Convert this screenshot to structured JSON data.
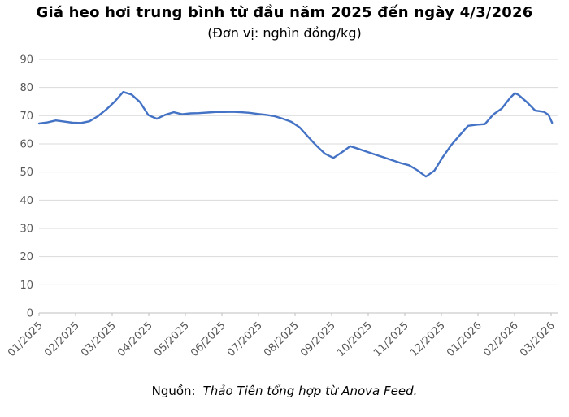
{
  "page": {
    "title": "Giá heo hơi trung bình từ đầu năm 2025 đến ngày 4/3/2026",
    "subtitle": "(Đơn vị: nghìn đồng/kg)",
    "source_label": "Nguồn:",
    "source_text": "Thảo Tiên tổng hợp từ Anova Feed."
  },
  "chart_data": {
    "type": "line",
    "title": "Giá heo hơi trung bình từ đầu năm 2025 đến ngày 4/3/2026",
    "subtitle": "(Đơn vị: nghìn đồng/kg)",
    "ylabel": "nghìn đồng/kg",
    "ylim": [
      0,
      90
    ],
    "y_ticks": [
      0,
      10,
      20,
      30,
      40,
      50,
      60,
      70,
      80,
      90
    ],
    "x_tick_labels": [
      "01/2025",
      "02/2025",
      "03/2025",
      "04/2025",
      "05/2025",
      "06/2025",
      "07/2025",
      "08/2025",
      "09/2025",
      "10/2025",
      "11/2025",
      "12/2025",
      "01/2026",
      "02/2026",
      "03/2026"
    ],
    "grid": "horizontal",
    "legend": "none",
    "colors": {
      "line": "#4472C4",
      "grid": "#D9D9D9",
      "axis": "#BFBFBF",
      "tick_text": "#595959",
      "title_text": "#000000"
    },
    "series": [
      {
        "name": "Giá heo hơi trung bình (nghìn đồng/kg)",
        "points": [
          {
            "date": "2025-01-01",
            "value": 67.2
          },
          {
            "date": "2025-01-08",
            "value": 67.6
          },
          {
            "date": "2025-01-15",
            "value": 68.3
          },
          {
            "date": "2025-01-22",
            "value": 67.9
          },
          {
            "date": "2025-01-29",
            "value": 67.5
          },
          {
            "date": "2025-02-05",
            "value": 67.4
          },
          {
            "date": "2025-02-12",
            "value": 68.0
          },
          {
            "date": "2025-02-19",
            "value": 69.8
          },
          {
            "date": "2025-02-26",
            "value": 72.2
          },
          {
            "date": "2025-03-05",
            "value": 75.0
          },
          {
            "date": "2025-03-12",
            "value": 78.4
          },
          {
            "date": "2025-03-19",
            "value": 77.5
          },
          {
            "date": "2025-03-26",
            "value": 74.8
          },
          {
            "date": "2025-04-02",
            "value": 70.2
          },
          {
            "date": "2025-04-09",
            "value": 68.9
          },
          {
            "date": "2025-04-16",
            "value": 70.3
          },
          {
            "date": "2025-04-23",
            "value": 71.2
          },
          {
            "date": "2025-04-30",
            "value": 70.5
          },
          {
            "date": "2025-05-07",
            "value": 70.8
          },
          {
            "date": "2025-05-14",
            "value": 70.9
          },
          {
            "date": "2025-05-21",
            "value": 71.1
          },
          {
            "date": "2025-05-28",
            "value": 71.3
          },
          {
            "date": "2025-06-04",
            "value": 71.3
          },
          {
            "date": "2025-06-11",
            "value": 71.4
          },
          {
            "date": "2025-06-18",
            "value": 71.2
          },
          {
            "date": "2025-06-25",
            "value": 71.0
          },
          {
            "date": "2025-07-02",
            "value": 70.6
          },
          {
            "date": "2025-07-09",
            "value": 70.3
          },
          {
            "date": "2025-07-16",
            "value": 69.8
          },
          {
            "date": "2025-07-23",
            "value": 68.9
          },
          {
            "date": "2025-07-30",
            "value": 67.8
          },
          {
            "date": "2025-08-06",
            "value": 65.8
          },
          {
            "date": "2025-08-13",
            "value": 62.5
          },
          {
            "date": "2025-08-20",
            "value": 59.3
          },
          {
            "date": "2025-08-27",
            "value": 56.5
          },
          {
            "date": "2025-09-03",
            "value": 55.0
          },
          {
            "date": "2025-09-10",
            "value": 57.0
          },
          {
            "date": "2025-09-17",
            "value": 59.2
          },
          {
            "date": "2025-09-24",
            "value": 58.2
          },
          {
            "date": "2025-10-01",
            "value": 57.2
          },
          {
            "date": "2025-10-08",
            "value": 56.2
          },
          {
            "date": "2025-10-15",
            "value": 55.2
          },
          {
            "date": "2025-10-22",
            "value": 54.2
          },
          {
            "date": "2025-10-29",
            "value": 53.2
          },
          {
            "date": "2025-11-05",
            "value": 52.4
          },
          {
            "date": "2025-11-12",
            "value": 50.6
          },
          {
            "date": "2025-11-19",
            "value": 48.4
          },
          {
            "date": "2025-11-26",
            "value": 50.5
          },
          {
            "date": "2025-12-03",
            "value": 55.3
          },
          {
            "date": "2025-12-10",
            "value": 59.6
          },
          {
            "date": "2025-12-17",
            "value": 63.0
          },
          {
            "date": "2025-12-24",
            "value": 66.4
          },
          {
            "date": "2025-12-31",
            "value": 66.8
          },
          {
            "date": "2026-01-07",
            "value": 67.0
          },
          {
            "date": "2026-01-14",
            "value": 70.4
          },
          {
            "date": "2026-01-21",
            "value": 72.5
          },
          {
            "date": "2026-01-28",
            "value": 76.3
          },
          {
            "date": "2026-02-01",
            "value": 78.0
          },
          {
            "date": "2026-02-04",
            "value": 77.4
          },
          {
            "date": "2026-02-11",
            "value": 74.8
          },
          {
            "date": "2026-02-18",
            "value": 71.8
          },
          {
            "date": "2026-02-25",
            "value": 71.4
          },
          {
            "date": "2026-03-01",
            "value": 70.3
          },
          {
            "date": "2026-03-04",
            "value": 67.5
          }
        ]
      }
    ]
  }
}
